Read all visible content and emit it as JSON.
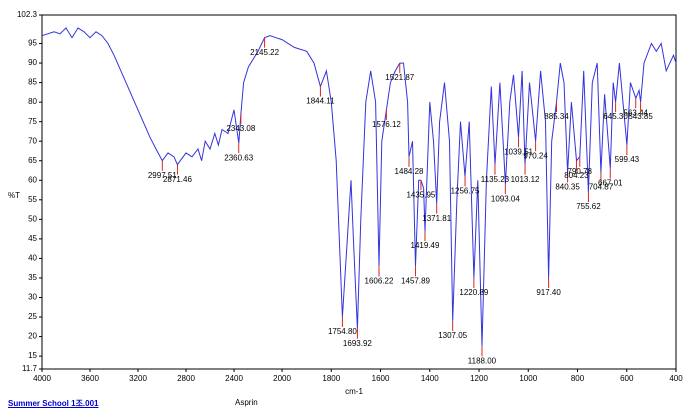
{
  "chart_data": {
    "type": "line",
    "y_label": "%T",
    "x_label": "cm-1",
    "xlim": [
      4000,
      400
    ],
    "x_scale_break": 2000,
    "xticks": [
      4000,
      3600,
      3200,
      2800,
      2400,
      2000,
      1800,
      1600,
      1400,
      1200,
      1000,
      800,
      600,
      400
    ],
    "ylim": [
      11.7,
      102.3
    ],
    "yticks": [
      11.7,
      15,
      20,
      25,
      30,
      35,
      40,
      45,
      50,
      55,
      60,
      65,
      70,
      75,
      80,
      85,
      90,
      95,
      102.3
    ],
    "x": [
      4000,
      3900,
      3850,
      3800,
      3750,
      3700,
      3650,
      3600,
      3550,
      3500,
      3450,
      3400,
      3300,
      3200,
      3100,
      3050,
      2997.51,
      2950,
      2900,
      2871.46,
      2800,
      2750,
      2700,
      2670,
      2640,
      2600,
      2560,
      2530,
      2500,
      2450,
      2400,
      2360.63,
      2343.08,
      2320,
      2280,
      2200,
      2145.22,
      2100,
      2050,
      2000,
      1950,
      1900,
      1870,
      1844.11,
      1820,
      1800,
      1780,
      1754.8,
      1740,
      1720,
      1710,
      1693.92,
      1680,
      1660,
      1640,
      1620,
      1606.22,
      1595,
      1576.12,
      1560,
      1540,
      1521.87,
      1506.67,
      1490,
      1484.28,
      1470,
      1457.89,
      1445,
      1435.95,
      1425,
      1419.49,
      1400,
      1385,
      1371.81,
      1360,
      1340,
      1320,
      1307.05,
      1290,
      1275,
      1256.75,
      1240,
      1220.89,
      1205,
      1188,
      1170,
      1150,
      1135.23,
      1115,
      1093.04,
      1075,
      1060,
      1039.51,
      1025,
      1013.12,
      995,
      970.24,
      950,
      930,
      917.4,
      905,
      885.34,
      870,
      855,
      840.35,
      825,
      804.23,
      790.78,
      775,
      755.62,
      740,
      720,
      704.87,
      690,
      667.01,
      655,
      645.3,
      630,
      599.43,
      585,
      563.44,
      550,
      543.85,
      530,
      500,
      480,
      460,
      440,
      425,
      410,
      400
    ],
    "series": [
      {
        "name": "Asprin",
        "color": "#3333dd",
        "values": [
          97,
          98,
          97.5,
          99,
          96.5,
          99,
          98,
          96.5,
          98,
          97,
          95,
          92,
          85,
          78,
          71,
          68,
          65,
          67,
          66,
          64,
          67,
          66,
          68,
          65,
          70,
          68,
          72,
          69,
          73,
          72,
          78,
          69.5,
          77,
          85,
          89,
          93,
          96.5,
          97,
          96.5,
          96,
          94,
          93,
          90,
          84,
          88,
          80,
          65,
          25,
          40,
          60,
          45,
          22,
          50,
          80,
          88,
          80,
          38,
          70,
          78,
          85,
          88,
          90,
          90,
          80,
          66,
          70,
          38,
          60,
          60,
          58,
          47,
          80,
          70,
          54,
          75,
          85,
          70,
          24,
          55,
          75,
          61,
          75,
          35,
          60,
          17.5,
          60,
          84,
          64,
          85,
          59,
          80,
          87,
          71,
          88,
          64,
          85,
          70,
          88,
          75,
          35,
          70,
          80,
          90,
          85,
          62,
          80,
          65,
          66,
          88,
          57,
          85,
          90,
          62,
          82,
          63,
          85,
          80,
          90,
          69,
          85,
          81,
          83,
          80,
          90,
          95,
          93,
          95,
          88,
          90,
          92,
          90
        ]
      }
    ],
    "annotations": [
      {
        "x": 2997.51,
        "y": 65,
        "label": "2997.51"
      },
      {
        "x": 2871.46,
        "y": 64,
        "label": "2871.46"
      },
      {
        "x": 2360.63,
        "y": 69.5,
        "label": "2360.63"
      },
      {
        "x": 2343.08,
        "y": 77,
        "label": "2343.08"
      },
      {
        "x": 2145.22,
        "y": 96.5,
        "label": "2145.22"
      },
      {
        "x": 1844.11,
        "y": 84,
        "label": "1844.11"
      },
      {
        "x": 1754.8,
        "y": 25,
        "label": "1754.80"
      },
      {
        "x": 1693.92,
        "y": 22,
        "label": "1693.92"
      },
      {
        "x": 1606.22,
        "y": 38,
        "label": "1606.22"
      },
      {
        "x": 1576.12,
        "y": 78,
        "label": "1576.12"
      },
      {
        "x": 1521.87,
        "y": 90,
        "label": "1521.87"
      },
      {
        "x": 1484.28,
        "y": 66,
        "label": "1484.28"
      },
      {
        "x": 1457.89,
        "y": 38,
        "label": "1457.89"
      },
      {
        "x": 1435.95,
        "y": 60,
        "label": "1435.95"
      },
      {
        "x": 1419.49,
        "y": 47,
        "label": "1419.49"
      },
      {
        "x": 1371.81,
        "y": 54,
        "label": "1371.81"
      },
      {
        "x": 1307.05,
        "y": 24,
        "label": "1307.05"
      },
      {
        "x": 1256.75,
        "y": 61,
        "label": "1256.75"
      },
      {
        "x": 1220.89,
        "y": 35,
        "label": "1220.89"
      },
      {
        "x": 1188,
        "y": 17.5,
        "label": "1188.00"
      },
      {
        "x": 1135.23,
        "y": 64,
        "label": "1135.23"
      },
      {
        "x": 1093.04,
        "y": 59,
        "label": "1093.04"
      },
      {
        "x": 1039.51,
        "y": 71,
        "label": "1039.51"
      },
      {
        "x": 1013.12,
        "y": 64,
        "label": "1013.12"
      },
      {
        "x": 970.24,
        "y": 70,
        "label": "970.24"
      },
      {
        "x": 917.4,
        "y": 35,
        "label": "917.40"
      },
      {
        "x": 885.34,
        "y": 80,
        "label": "885.34"
      },
      {
        "x": 840.35,
        "y": 62,
        "label": "840.35"
      },
      {
        "x": 804.23,
        "y": 65,
        "label": "804.23"
      },
      {
        "x": 790.78,
        "y": 66,
        "label": "790.78"
      },
      {
        "x": 755.62,
        "y": 57,
        "label": "755.62"
      },
      {
        "x": 704.87,
        "y": 62,
        "label": "704.87"
      },
      {
        "x": 667.01,
        "y": 63,
        "label": "667.01"
      },
      {
        "x": 645.3,
        "y": 80,
        "label": "645.30"
      },
      {
        "x": 599.43,
        "y": 69,
        "label": "599.43"
      },
      {
        "x": 563.44,
        "y": 81,
        "label": "563.44"
      },
      {
        "x": 543.85,
        "y": 80,
        "label": "543.85"
      }
    ],
    "footer_left": "Summer School 1조.001",
    "footer_center": "Asprin"
  }
}
